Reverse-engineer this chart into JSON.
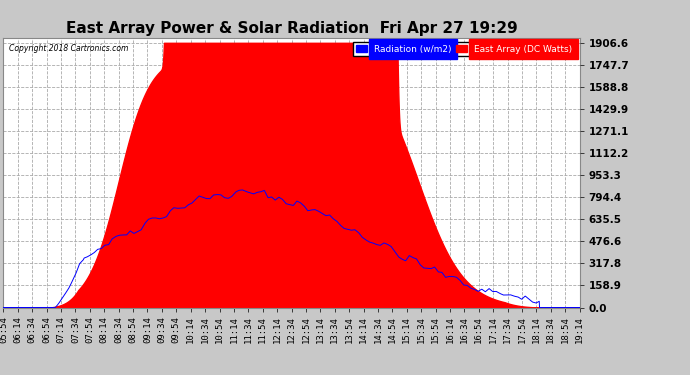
{
  "title": "East Array Power & Solar Radiation  Fri Apr 27 19:29",
  "copyright": "Copyright 2018 Cartronics.com",
  "legend_labels": [
    "Radiation (w/m2)",
    "East Array (DC Watts)"
  ],
  "y_ticks": [
    0.0,
    158.9,
    317.8,
    476.6,
    635.5,
    794.4,
    953.3,
    1112.2,
    1271.1,
    1429.9,
    1588.8,
    1747.7,
    1906.6
  ],
  "ylim": [
    0,
    1906.6
  ],
  "background_color": "#c8c8c8",
  "plot_bg_color": "#ffffff",
  "grid_color": "#aaaaaa",
  "title_fontsize": 11,
  "axis_label_fontsize": 6.5,
  "y_label_fontsize": 7.5
}
